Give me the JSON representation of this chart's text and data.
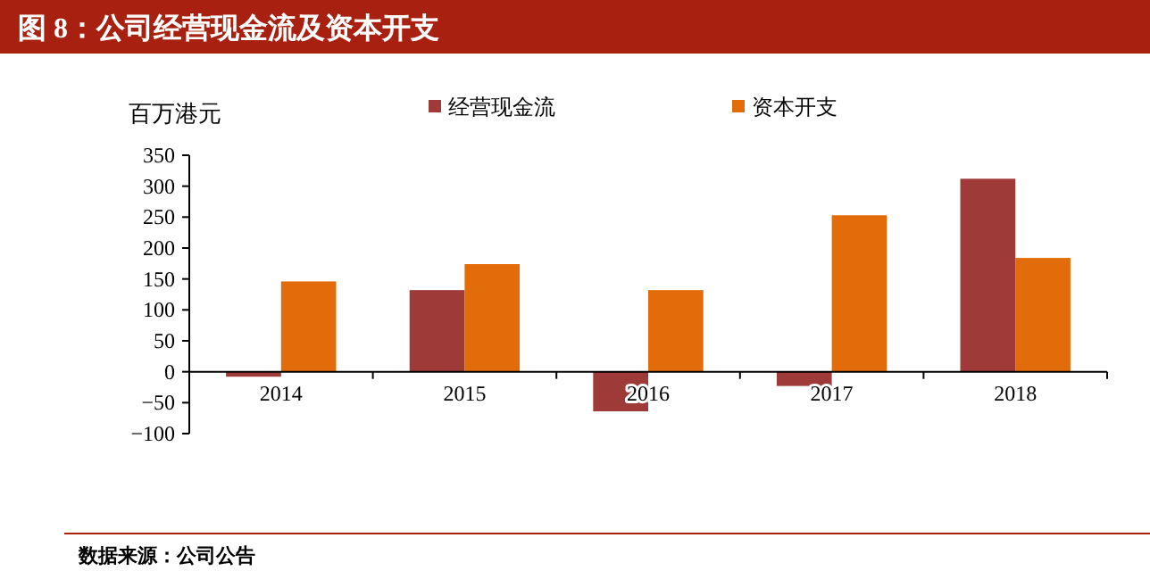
{
  "chart_data": {
    "type": "bar",
    "title": "图 8：公司经营现金流及资本开支",
    "ylabel": "百万港元",
    "categories": [
      "2014",
      "2015",
      "2016",
      "2017",
      "2018"
    ],
    "series": [
      {
        "name": "经营现金流",
        "color": "#9e3a38",
        "values": [
          -8,
          132,
          -64,
          -23,
          312
        ]
      },
      {
        "name": "资本开支",
        "color": "#e36c0a",
        "values": [
          146,
          174,
          132,
          253,
          184
        ]
      }
    ],
    "ylim": [
      -100,
      350
    ],
    "yticks": [
      -100,
      -50,
      0,
      50,
      100,
      150,
      200,
      250,
      300,
      350
    ],
    "legend": "top",
    "annotations": [
      "数据来源：公司公告"
    ]
  }
}
